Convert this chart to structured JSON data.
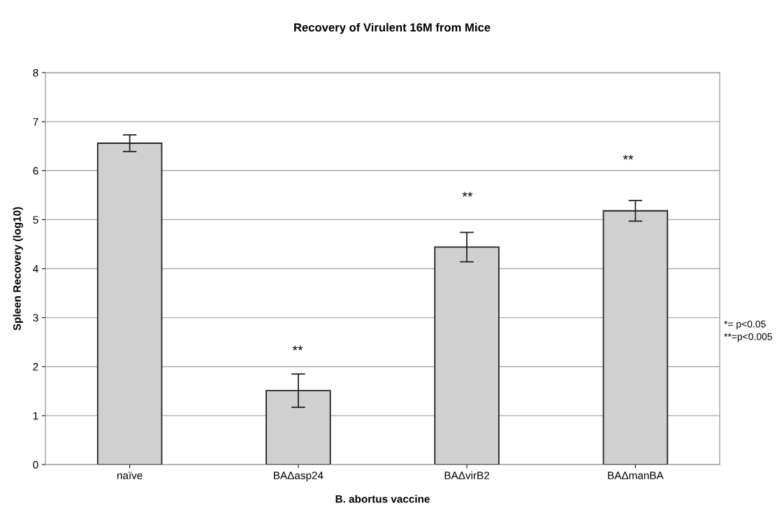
{
  "chart_data": {
    "type": "bar",
    "title": "Recovery of Virulent 16M from Mice",
    "xlabel": "B. abortus vaccine",
    "ylabel": "Spleen Recovery (log10)",
    "categories": [
      "naïve",
      "BAΔasp24",
      "BAΔvirB2",
      "BAΔmanBA"
    ],
    "values": [
      6.56,
      1.51,
      4.44,
      5.18
    ],
    "errors": [
      0.17,
      0.34,
      0.3,
      0.21
    ],
    "color": "#d0d0d0",
    "ylim": [
      0,
      8
    ],
    "yticks": [
      0,
      1,
      2,
      3,
      4,
      5,
      6,
      7,
      8
    ],
    "grid": "y",
    "annotations": [
      "**",
      "**",
      "**",
      "*= p<0.05",
      "**=p<0.005"
    ]
  }
}
